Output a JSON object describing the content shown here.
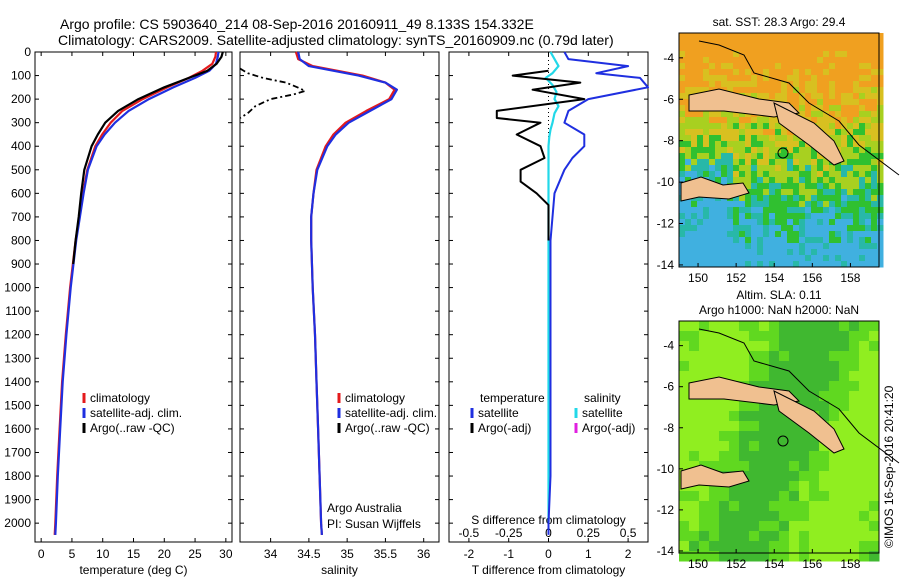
{
  "header": {
    "line1": "Argo profile: CS 5903640_214 08-Sep-2016 20160911_49 8.133S 154.332E",
    "line2": "Climatology: CARS2009. Satellite-adjusted climatology: synTS_20160909.nc (0.79d later)"
  },
  "footer_text": "©IMOS 16-Sep-2016 20:41:20",
  "colors": {
    "climatology": "#e41a1c",
    "satellite": "#1f2fe0",
    "argo": "#000000",
    "sal_satellite": "#22d8e8",
    "sal_argo": "#e020e0"
  },
  "chart_data": [
    {
      "type": "line",
      "xlabel": "temperature (deg C)",
      "ylabel": "",
      "xlim": [
        -1,
        31
      ],
      "ylim": [
        2080,
        0
      ],
      "xticks": [
        0,
        5,
        10,
        15,
        20,
        25,
        30
      ],
      "yticks": [
        0,
        100,
        200,
        300,
        400,
        500,
        600,
        700,
        800,
        900,
        1000,
        1100,
        1200,
        1300,
        1400,
        1500,
        1600,
        1700,
        1800,
        1900,
        2000
      ],
      "legend": [
        "climatology",
        "satellite-adj. clim.",
        "Argo(..raw -QC)"
      ],
      "series": [
        {
          "name": "climatology",
          "y": [
            0,
            20,
            50,
            80,
            110,
            150,
            200,
            250,
            300,
            350,
            400,
            500,
            600,
            700,
            800,
            1000,
            1200,
            1400,
            1600,
            1800,
            2000,
            2050
          ],
          "values": [
            28.4,
            28.3,
            27.8,
            26.2,
            24.0,
            20.5,
            16.5,
            13.2,
            11.3,
            9.9,
            8.8,
            7.5,
            6.8,
            6.2,
            5.6,
            4.7,
            4.0,
            3.4,
            3.0,
            2.6,
            2.3,
            2.2
          ]
        },
        {
          "name": "satellite-adj. clim.",
          "y": [
            0,
            20,
            50,
            80,
            110,
            150,
            200,
            250,
            300,
            350,
            400,
            500,
            600,
            700,
            800,
            1000,
            1200,
            1400,
            1600,
            1800,
            2000,
            2050
          ],
          "values": [
            28.8,
            28.7,
            28.4,
            27.3,
            25.0,
            21.5,
            17.5,
            14.2,
            12.0,
            10.3,
            9.0,
            7.6,
            6.9,
            6.3,
            5.7,
            4.8,
            4.1,
            3.5,
            3.1,
            2.7,
            2.4,
            2.3
          ]
        },
        {
          "name": "Argo(..raw -QC)",
          "y": [
            0,
            20,
            50,
            80,
            110,
            150,
            200,
            250,
            300,
            350,
            400,
            500,
            600,
            700,
            800,
            900
          ],
          "values": [
            29.5,
            29.3,
            28.5,
            27.0,
            24.0,
            20.0,
            15.8,
            12.5,
            10.4,
            9.2,
            8.2,
            7.0,
            6.5,
            6.1,
            5.6,
            5.2
          ]
        }
      ]
    },
    {
      "type": "line",
      "xlabel": "salinity",
      "xlim": [
        33.6,
        36.2
      ],
      "ylim": [
        2080,
        0
      ],
      "xticks": [
        34,
        34.5,
        35,
        35.5,
        36
      ],
      "footnote": [
        "Argo Australia",
        "PI: Susan Wijffels"
      ],
      "legend": [
        "climatology",
        "satellite-adj. clim.",
        "Argo(..raw -QC)"
      ],
      "series": [
        {
          "name": "climatology",
          "y": [
            0,
            30,
            60,
            100,
            130,
            160,
            200,
            250,
            300,
            350,
            400,
            500,
            600,
            700,
            800,
            1000,
            1200,
            1400,
            1600,
            1800,
            2000,
            2050
          ],
          "values": [
            34.33,
            34.36,
            34.55,
            35.2,
            35.5,
            35.62,
            35.55,
            35.25,
            34.98,
            34.82,
            34.72,
            34.6,
            34.56,
            34.53,
            34.53,
            34.55,
            34.58,
            34.6,
            34.62,
            34.64,
            34.66,
            34.67
          ]
        },
        {
          "name": "satellite-adj. clim.",
          "y": [
            0,
            30,
            60,
            100,
            130,
            160,
            200,
            250,
            300,
            350,
            400,
            500,
            600,
            700,
            800,
            1000,
            1200,
            1400,
            1600,
            1800,
            2000,
            2050
          ],
          "values": [
            34.36,
            34.38,
            34.5,
            35.15,
            35.5,
            35.65,
            35.58,
            35.3,
            35.02,
            34.85,
            34.74,
            34.61,
            34.56,
            34.53,
            34.53,
            34.55,
            34.58,
            34.6,
            34.62,
            34.64,
            34.66,
            34.67
          ]
        },
        {
          "name": "Argo(..raw -QC)",
          "y": [
            70,
            90,
            110,
            130,
            150,
            165,
            180,
            200,
            230,
            260,
            280
          ],
          "values": [
            33.6,
            33.7,
            33.9,
            34.2,
            34.35,
            34.45,
            34.3,
            34.0,
            33.8,
            33.7,
            33.6
          ]
        }
      ]
    },
    {
      "type": "line",
      "xlabel": "T difference from climatology",
      "xlabel_top": "S difference from climatology",
      "xlim": [
        -2.5,
        2.5
      ],
      "ylim": [
        2080,
        0
      ],
      "xticks": [
        -2,
        -1,
        0,
        1,
        2
      ],
      "xticks_S": [
        "-0.5",
        "-0.25",
        "0",
        "0.25",
        "0.5"
      ],
      "legend": {
        "temperature": [
          "satellite",
          "Argo(-adj)"
        ],
        "salinity": [
          "satellite",
          "Argo(-adj)"
        ]
      },
      "legend_titles": [
        "temperature",
        "salinity"
      ],
      "series": [
        {
          "name": "satellite",
          "group": "temperature",
          "y": [
            0,
            30,
            60,
            90,
            110,
            150,
            200,
            250,
            300,
            350,
            400,
            450,
            500,
            600,
            700,
            800,
            1000,
            1200,
            1400,
            1600,
            1800,
            2000,
            2050
          ],
          "values": [
            0.4,
            0.5,
            2.0,
            1.2,
            2.3,
            2.5,
            1.0,
            0.5,
            0.4,
            0.9,
            0.9,
            0.6,
            0.4,
            0.15,
            0.1,
            0.05,
            0.05,
            0.05,
            0.05,
            0.05,
            0.05,
            0.0,
            0.0
          ]
        },
        {
          "name": "Argo(-adj)",
          "group": "temperature",
          "y": [
            80,
            100,
            130,
            160,
            200,
            250,
            280,
            300,
            350,
            400,
            450,
            500,
            550,
            600,
            650,
            700,
            800
          ],
          "values": [
            0.0,
            -0.9,
            0.8,
            -0.4,
            0.9,
            -1.3,
            -1.3,
            -0.2,
            -0.8,
            -0.2,
            -0.1,
            -0.7,
            -0.7,
            -0.3,
            0.0,
            0.0,
            0.0
          ]
        },
        {
          "name": "satellite",
          "group": "salinity",
          "y": [
            0,
            60,
            90,
            110,
            140,
            170,
            200,
            230,
            260,
            300,
            330,
            360,
            400,
            500,
            600,
            800,
            1000,
            1200,
            1500,
            1800,
            2000
          ],
          "values": [
            0.05,
            0.25,
            0.1,
            -0.07,
            0.1,
            0.2,
            0.15,
            0.25,
            0.15,
            0.1,
            0.05,
            0.02,
            0.0,
            0.0,
            0.0,
            0.0,
            0.0,
            0.0,
            0.0,
            0.0,
            0.0
          ]
        }
      ]
    }
  ],
  "maps": [
    {
      "title": "sat. SST: 28.3 Argo: 29.4",
      "xticks": [
        "150",
        "152",
        "154",
        "156",
        "158"
      ],
      "yticks": [
        "-4",
        "-6",
        "-8",
        "-10",
        "-12",
        "-14"
      ]
    },
    {
      "title_line1": "Altim. SLA: 0.11",
      "title_line2": "Argo h1000: NaN h2000: NaN",
      "xticks": [
        "150",
        "152",
        "154",
        "156",
        "158"
      ],
      "yticks": [
        "-4",
        "-6",
        "-8",
        "-10",
        "-12",
        "-14"
      ]
    }
  ]
}
